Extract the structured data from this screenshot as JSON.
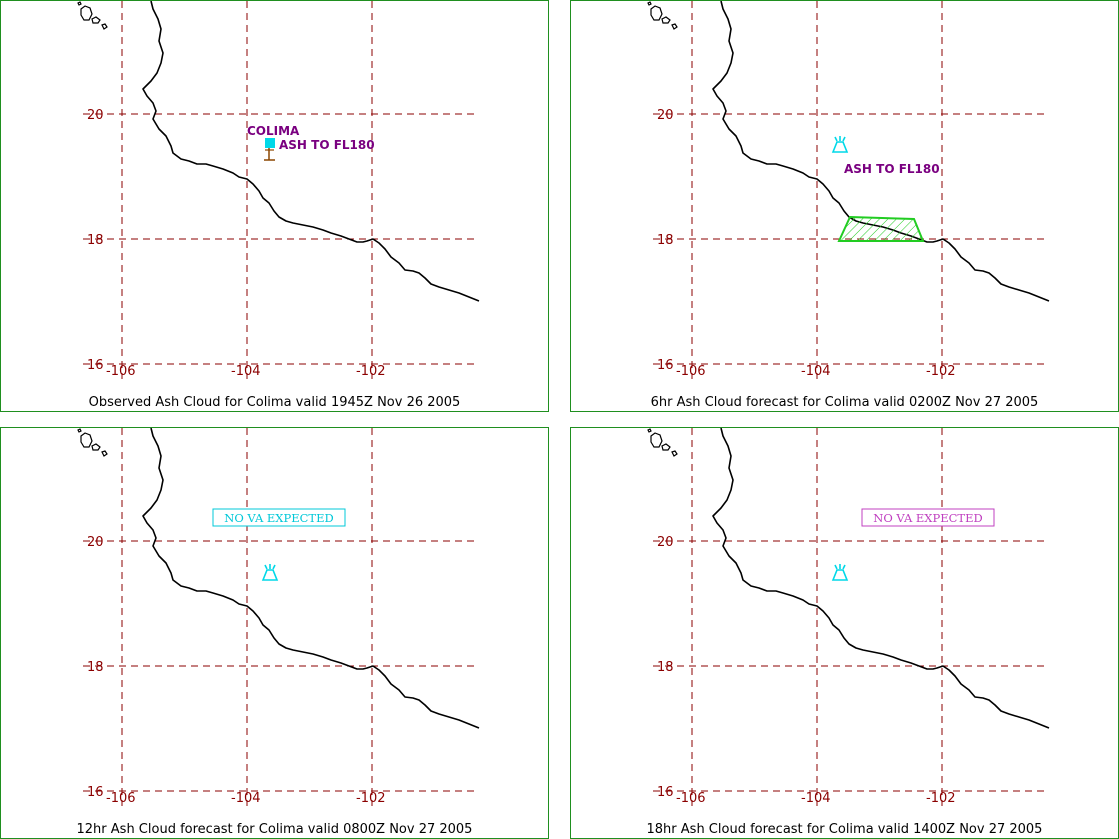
{
  "panels": [
    {
      "caption": "Observed Ash Cloud for Colima valid 1945Z Nov 26 2005",
      "volcano_name": "COLIMA",
      "ash_label": "ASH TO FL180",
      "no_va_label": ""
    },
    {
      "caption": "6hr Ash Cloud forecast for Colima valid 0200Z Nov 27 2005",
      "volcano_name": "",
      "ash_label": "ASH TO FL180",
      "no_va_label": ""
    },
    {
      "caption": "12hr Ash Cloud forecast for Colima valid 0800Z Nov 27 2005",
      "volcano_name": "",
      "ash_label": "",
      "no_va_label": "NO VA EXPECTED",
      "no_va_color": "#00c8d8"
    },
    {
      "caption": "18hr Ash Cloud forecast for Colima valid 1400Z Nov 27 2005",
      "volcano_name": "",
      "ash_label": "",
      "no_va_label": "NO VA EXPECTED",
      "no_va_color": "#c040c0"
    }
  ],
  "lat_labels": [
    "20",
    "18",
    "16"
  ],
  "lon_labels": [
    "-106",
    "-104",
    "-102"
  ],
  "colors": {
    "grid": "#8b0000",
    "frame": "#1f8f1f",
    "volcano": "#00d8e8",
    "ash_text": "#7a0080",
    "ash_polygon": "#22cc22"
  },
  "icons": [
    "volcano-icon",
    "observation-station-icon"
  ]
}
